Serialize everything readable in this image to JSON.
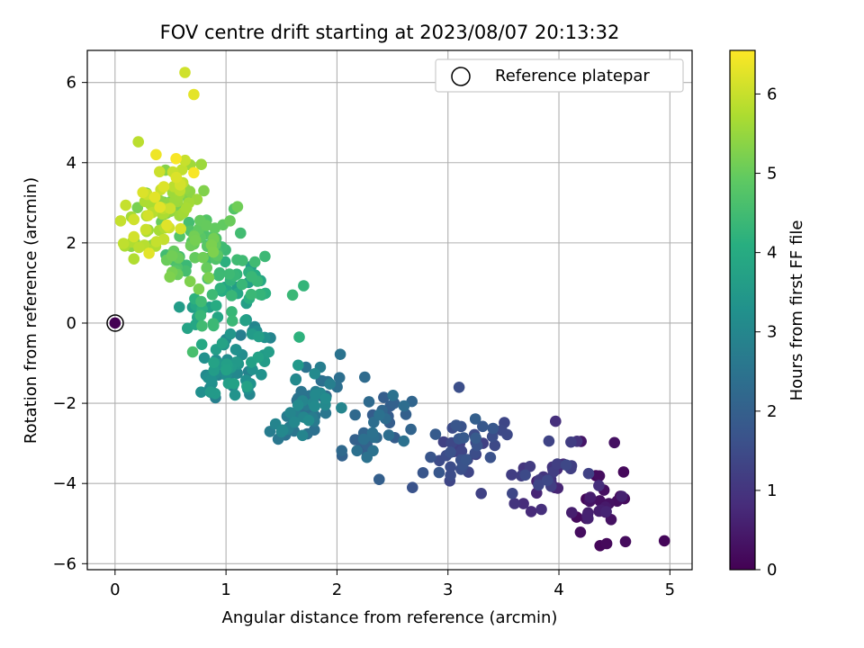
{
  "chart_data": {
    "type": "scatter",
    "title": "FOV centre drift starting at 2023/08/07 20:13:32",
    "xlabel": "Angular distance from reference (arcmin)",
    "ylabel": "Rotation from reference (arcmin)",
    "xlim": [
      -0.25,
      5.2
    ],
    "ylim": [
      -6.15,
      6.8
    ],
    "xticks": [
      0,
      1,
      2,
      3,
      4,
      5
    ],
    "yticks": [
      -6,
      -4,
      -2,
      0,
      2,
      4,
      6
    ],
    "xtick_labels": [
      "0",
      "1",
      "2",
      "3",
      "4",
      "5"
    ],
    "ytick_labels": [
      "−6",
      "−4",
      "−2",
      "0",
      "2",
      "4",
      "6"
    ],
    "grid": true,
    "colormap": "viridis",
    "colorbar": {
      "label": "Hours from first FF file",
      "range": [
        0,
        6.55
      ],
      "ticks": [
        0,
        1,
        2,
        3,
        4,
        5,
        6
      ],
      "tick_labels": [
        "0",
        "1",
        "2",
        "3",
        "4",
        "5",
        "6"
      ]
    },
    "legend": {
      "position": "top-right",
      "entries": [
        "Reference platepar"
      ]
    },
    "reference_point": {
      "x": 0,
      "y": 0
    },
    "clusters": [
      {
        "x": [
          4.1,
          4.6
        ],
        "y": [
          -5.5,
          -3.6
        ],
        "hours": [
          0.1,
          0.9
        ],
        "count": 25
      },
      {
        "x": [
          3.5,
          4.3
        ],
        "y": [
          -4.8,
          -2.6
        ],
        "hours": [
          0.6,
          1.5
        ],
        "count": 35
      },
      {
        "x": [
          2.7,
          3.6
        ],
        "y": [
          -4.0,
          -2.1
        ],
        "hours": [
          1.2,
          2.0
        ],
        "count": 45
      },
      {
        "x": [
          2.0,
          2.8
        ],
        "y": [
          -3.7,
          -1.6
        ],
        "hours": [
          1.8,
          2.5
        ],
        "count": 35
      },
      {
        "x": [
          1.3,
          2.1
        ],
        "y": [
          -3.2,
          -0.9
        ],
        "hours": [
          2.3,
          3.2
        ],
        "count": 55
      },
      {
        "x": [
          0.7,
          1.5
        ],
        "y": [
          -2.2,
          0.4
        ],
        "hours": [
          2.8,
          3.8
        ],
        "count": 65
      },
      {
        "x": [
          0.6,
          1.4
        ],
        "y": [
          -0.6,
          2.0
        ],
        "hours": [
          3.6,
          4.5
        ],
        "count": 55
      },
      {
        "x": [
          0.4,
          1.2
        ],
        "y": [
          0.8,
          3.0
        ],
        "hours": [
          4.4,
          5.3
        ],
        "count": 60
      },
      {
        "x": [
          0.05,
          0.8
        ],
        "y": [
          1.6,
          4.2
        ],
        "hours": [
          5.0,
          6.3
        ],
        "count": 80
      }
    ],
    "extra_points": [
      {
        "x": 0.63,
        "y": 6.25,
        "h": 6.1
      },
      {
        "x": 0.71,
        "y": 5.7,
        "h": 6.3
      },
      {
        "x": 0.21,
        "y": 4.52,
        "h": 5.9
      },
      {
        "x": 0.37,
        "y": 4.2,
        "h": 6.4
      },
      {
        "x": 0.55,
        "y": 4.1,
        "h": 6.5
      },
      {
        "x": 0.71,
        "y": 3.75,
        "h": 6.5
      },
      {
        "x": 0.8,
        "y": 3.3,
        "h": 5.3
      },
      {
        "x": 0.05,
        "y": 2.55,
        "h": 6.0
      },
      {
        "x": 0.17,
        "y": 1.6,
        "h": 5.8
      },
      {
        "x": 0.58,
        "y": 0.4,
        "h": 3.6
      },
      {
        "x": 0.7,
        "y": -0.72,
        "h": 4.6
      },
      {
        "x": 0.82,
        "y": -1.3,
        "h": 3.1
      },
      {
        "x": 1.6,
        "y": 0.7,
        "h": 4.4
      },
      {
        "x": 1.7,
        "y": 0.93,
        "h": 4.3
      },
      {
        "x": 1.66,
        "y": -0.35,
        "h": 4.2
      },
      {
        "x": 1.65,
        "y": -1.05,
        "h": 3.5
      },
      {
        "x": 1.85,
        "y": -1.1,
        "h": 2.8
      },
      {
        "x": 2.03,
        "y": -0.78,
        "h": 2.5
      },
      {
        "x": 2.25,
        "y": -1.35,
        "h": 2.3
      },
      {
        "x": 2.38,
        "y": -3.9,
        "h": 2.0
      },
      {
        "x": 2.68,
        "y": -4.1,
        "h": 1.7
      },
      {
        "x": 3.1,
        "y": -1.6,
        "h": 1.6
      },
      {
        "x": 3.3,
        "y": -4.25,
        "h": 1.3
      },
      {
        "x": 3.6,
        "y": -4.5,
        "h": 1.0
      },
      {
        "x": 3.75,
        "y": -4.7,
        "h": 0.8
      },
      {
        "x": 3.97,
        "y": -2.45,
        "h": 0.9
      },
      {
        "x": 4.2,
        "y": -2.95,
        "h": 0.4
      },
      {
        "x": 4.5,
        "y": -2.98,
        "h": 0.3
      },
      {
        "x": 4.95,
        "y": -5.43,
        "h": 0.1
      },
      {
        "x": 4.6,
        "y": -5.45,
        "h": 0.2
      },
      {
        "x": 4.43,
        "y": -5.5,
        "h": 0.15
      },
      {
        "x": 4.37,
        "y": -5.55,
        "h": 0.1
      },
      {
        "x": 4.59,
        "y": -4.38,
        "h": 0.2
      },
      {
        "x": 4.47,
        "y": -4.9,
        "h": 0.3
      },
      {
        "x": 4.45,
        "y": -4.5,
        "h": 0.3
      }
    ]
  }
}
